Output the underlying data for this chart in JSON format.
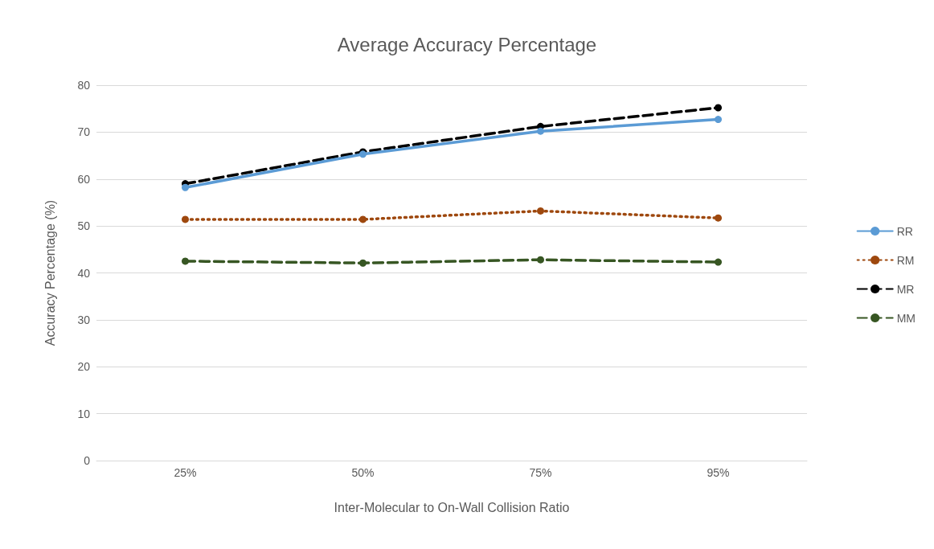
{
  "chart_data": {
    "type": "line",
    "title": "Average Accuracy Percentage",
    "xlabel": "Inter-Molecular to On-Wall Collision Ratio",
    "ylabel": "Accuracy Percentage (%)",
    "categories": [
      "25%",
      "50%",
      "75%",
      "95%"
    ],
    "series": [
      {
        "name": "RR",
        "color": "#5b9bd5",
        "values": [
          58.2,
          65.3,
          70.2,
          72.7
        ],
        "line_style": "solid"
      },
      {
        "name": "RM",
        "color": "#9e480e",
        "values": [
          51.4,
          51.4,
          53.2,
          51.7
        ],
        "line_style": "dotted"
      },
      {
        "name": "MR",
        "color": "#000000",
        "values": [
          59.0,
          65.8,
          71.2,
          75.2
        ],
        "line_style": "dashed"
      },
      {
        "name": "MM",
        "color": "#375623",
        "values": [
          42.5,
          42.1,
          42.8,
          42.3
        ],
        "line_style": "dashed"
      }
    ],
    "ylim": [
      0,
      80
    ],
    "yticks": [
      0,
      10,
      20,
      30,
      40,
      50,
      60,
      70,
      80
    ],
    "grid": "y",
    "legend": "right",
    "marker": "circle"
  }
}
